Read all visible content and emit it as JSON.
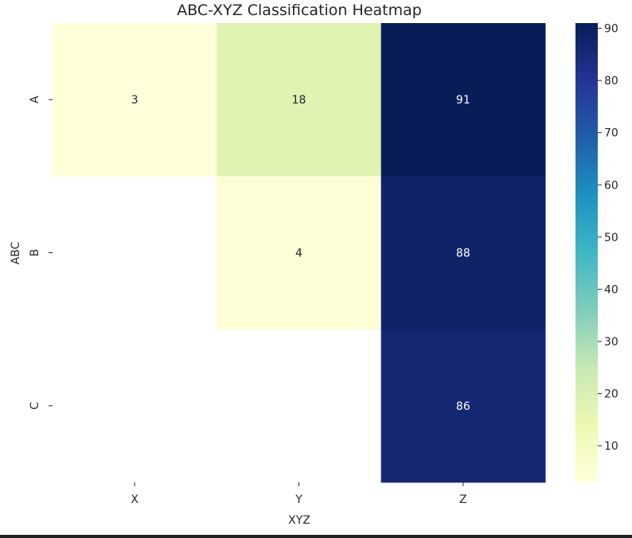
{
  "chart_data": {
    "type": "heatmap",
    "title": "ABC-XYZ Classification Heatmap",
    "xlabel": "XYZ",
    "ylabel": "ABC",
    "x_categories": [
      "X",
      "Y",
      "Z"
    ],
    "y_categories": [
      "A",
      "B",
      "C"
    ],
    "values": [
      [
        3,
        18,
        91
      ],
      [
        null,
        4,
        88
      ],
      [
        null,
        null,
        86
      ]
    ],
    "colorbar": {
      "range": [
        3,
        91
      ],
      "ticks": [
        10,
        20,
        30,
        40,
        50,
        60,
        70,
        80,
        90
      ],
      "colormap": "YlGnBu"
    },
    "annotation_colors": {
      "light_cell": "#262626",
      "dark_cell": "#ffffff"
    }
  }
}
